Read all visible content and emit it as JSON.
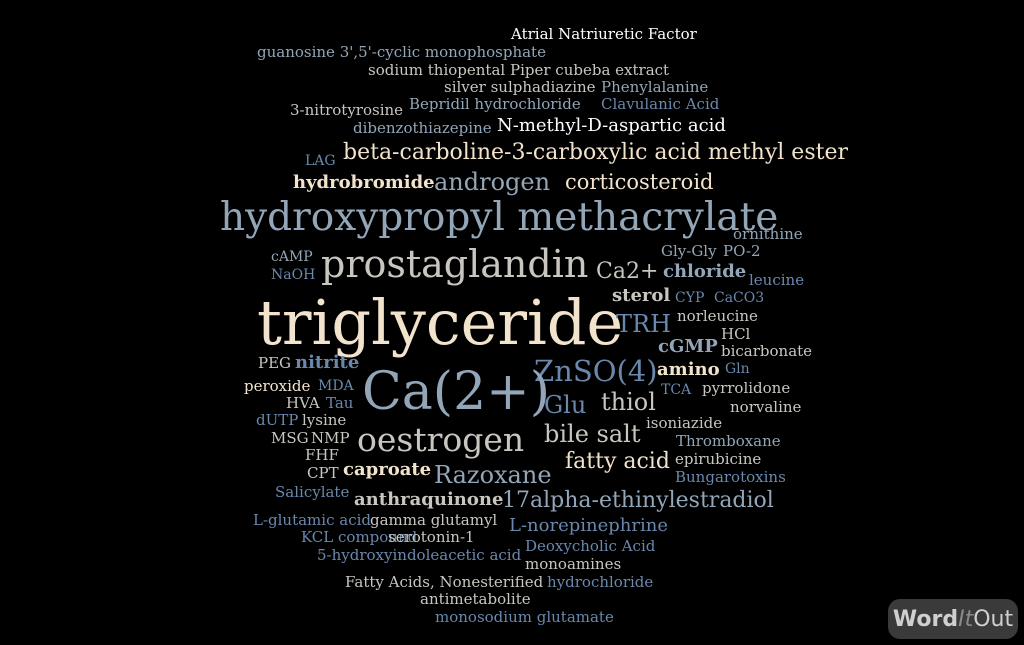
{
  "words": [
    "Atrial Natriuretic Factor",
    "guanosine 3',5'-cyclic monophosphate",
    "sodium thiopental",
    "Piper cubeba extract",
    "silver sulphadiazine",
    "Phenylalanine",
    "3-nitrotyrosine",
    "Bepridil hydrochloride",
    "Clavulanic Acid",
    "dibenzothiazepine",
    "N-methyl-D-aspartic acid",
    "LAG",
    "beta-carboline-3-carboxylic acid methyl ester",
    "hydrobromide",
    "androgen",
    "corticosteroid",
    "hydroxypropyl methacrylate",
    "ornithine",
    "cAMP",
    "Gly-Gly",
    "PO-2",
    "NaOH",
    "prostaglandin",
    "Ca2+",
    "chloride",
    "leucine",
    "sterol",
    "CYP",
    "CaCO3",
    "triglyceride",
    "norleucine",
    "TRH",
    "HCl",
    "cGMP",
    "bicarbonate",
    "PEG",
    "nitrite",
    "ZnSO(4)",
    "amino",
    "Gln",
    "peroxide",
    "MDA",
    "Ca(2+)",
    "TCA",
    "pyrrolidone",
    "HVA",
    "Tau",
    "Glu",
    "thiol",
    "norvaline",
    "dUTP",
    "lysine",
    "isoniazide",
    "MSG",
    "NMP",
    "oestrogen",
    "bile salt",
    "Thromboxane",
    "FHF",
    "fatty acid",
    "epirubicine",
    "CPT",
    "caproate",
    "Razoxane",
    "Bungarotoxins",
    "Salicylate",
    "anthraquinone",
    "17alpha-ethinylestradiol",
    "L-glutamic acid",
    "gamma glutamyl",
    "L-norepinephrine",
    "KCL compound",
    "serotonin-1",
    "Deoxycholic Acid",
    "5-hydroxyindoleacetic acid",
    "monoamines",
    "Fatty Acids, Nonesterified",
    "hydrochloride",
    "antimetabolite",
    "monosodium glutamate"
  ],
  "logo": {
    "part1": "Word",
    "part2": "It",
    "part3": "Out"
  }
}
